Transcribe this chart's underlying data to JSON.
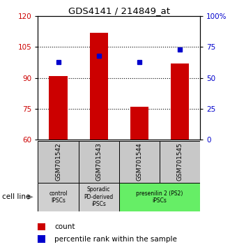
{
  "title": "GDS4141 / 214849_at",
  "samples": [
    "GSM701542",
    "GSM701543",
    "GSM701544",
    "GSM701545"
  ],
  "counts": [
    91,
    112,
    76,
    97
  ],
  "percentiles": [
    63,
    68,
    63,
    73
  ],
  "ylim_left": [
    60,
    120
  ],
  "ylim_right": [
    0,
    100
  ],
  "yticks_left": [
    60,
    75,
    90,
    105,
    120
  ],
  "yticks_right": [
    0,
    25,
    50,
    75,
    100
  ],
  "bar_color": "#cc0000",
  "dot_color": "#0000cc",
  "bar_bottom": 60,
  "groups": [
    {
      "label": "control\nIPSCs",
      "start": 0,
      "end": 1,
      "color": "#d0d0d0"
    },
    {
      "label": "Sporadic\nPD-derived\niPSCs",
      "start": 1,
      "end": 2,
      "color": "#d0d0d0"
    },
    {
      "label": "presenilin 2 (PS2)\niPSCs",
      "start": 2,
      "end": 4,
      "color": "#66ee66"
    }
  ],
  "legend_count_label": "count",
  "legend_percentile_label": "percentile rank within the sample",
  "cell_line_label": "cell line",
  "tick_label_color_left": "#cc0000",
  "tick_label_color_right": "#0000cc",
  "dotted_lines": [
    75,
    90,
    105
  ],
  "sample_box_color": "#c8c8c8",
  "right_labels": [
    "0",
    "25",
    "50",
    "75",
    "100%"
  ]
}
